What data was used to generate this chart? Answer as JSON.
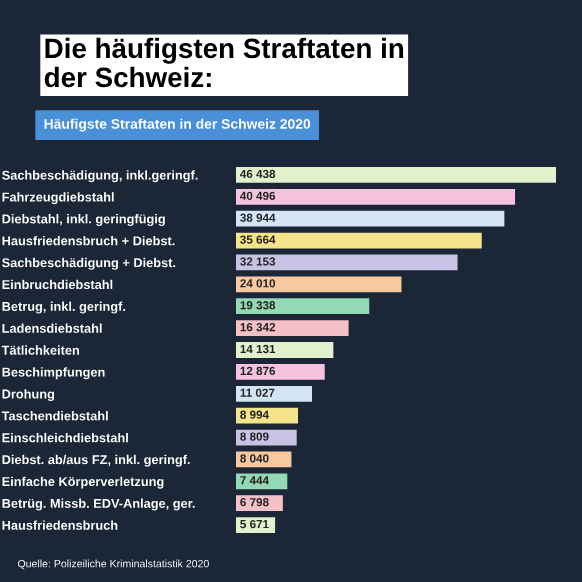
{
  "chart_data": {
    "type": "bar",
    "orientation": "horizontal",
    "title": "Die häufigsten Straftaten in\nder Schweiz:",
    "subtitle": "Häufigste Straftaten in der Schweiz 2020",
    "categories": [
      "Sachbeschädigung, inkl.geringf.",
      "Fahrzeugdiebstahl",
      "Diebstahl, inkl. geringfügig",
      "Hausfriedensbruch + Diebst.",
      "Sachbeschädigung + Diebst.",
      "Einbruchdiebstahl",
      "Betrug, inkl. geringf.",
      "Ladensdiebstahl",
      "Tätlichkeiten",
      "Beschimpfungen",
      "Drohung",
      "Taschendiebstahl",
      "Einschleichdiebstahl",
      "Diebst. ab/aus FZ, inkl. geringf.",
      "Einfache Körperverletzung",
      "Betrüg. Missb. EDV-Anlage, ger.",
      "Hausfriedensbruch"
    ],
    "values": [
      46438,
      40496,
      38944,
      35664,
      32153,
      24010,
      19338,
      16342,
      14131,
      12876,
      11027,
      8994,
      8809,
      8040,
      7444,
      6798,
      5671
    ],
    "value_labels": [
      "46 438",
      "40 496",
      "38 944",
      "35 664",
      "32 153",
      "24 010",
      "19 338",
      "16 342",
      "14 131",
      "12 876",
      "11 027",
      "8 994",
      "8 809",
      "8 040",
      "7 444",
      "6 798",
      "5 671"
    ],
    "colors": [
      "#e2f0cb",
      "#f5c2e0",
      "#d3e4f5",
      "#f5e48a",
      "#c8c2e4",
      "#f8c9a0",
      "#93d9b5",
      "#f6c0c8",
      "#e2f0cb",
      "#f5c2e0",
      "#d3e4f5",
      "#f5e48a",
      "#c8c2e4",
      "#f8c9a0",
      "#93d9b5",
      "#f6c0c8",
      "#e2f0cb"
    ],
    "annotations": [
      "Quelle: Polizeiliche Kriminalstatistik 2020"
    ],
    "tick_labels": "y",
    "grid": false,
    "legend": false
  }
}
